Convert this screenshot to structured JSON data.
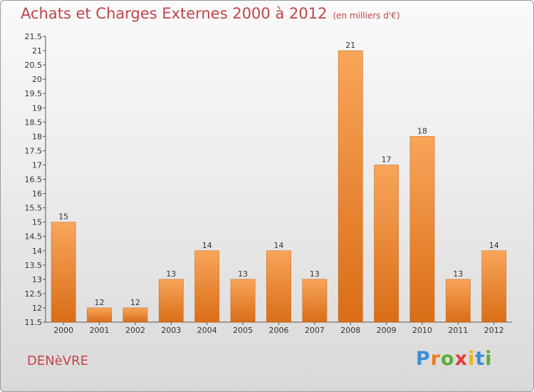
{
  "header": {
    "title": "Achats et Charges Externes 2000 à 2012",
    "subtitle": "(en milliers d'€)"
  },
  "footer": {
    "commune": "DENèVRE",
    "logo_text": "Proxiti"
  },
  "chart_data": {
    "type": "bar",
    "title": "Achats et Charges Externes 2000 à 2012",
    "subtitle": "(en milliers d'€)",
    "xlabel": "",
    "ylabel": "",
    "categories": [
      "2000",
      "2001",
      "2002",
      "2003",
      "2004",
      "2005",
      "2006",
      "2007",
      "2008",
      "2009",
      "2010",
      "2011",
      "2012"
    ],
    "values": [
      15,
      12,
      12,
      13,
      14,
      13,
      14,
      13,
      21,
      17,
      18,
      13,
      14
    ],
    "ylim": [
      11.5,
      21.5
    ],
    "yticks": [
      "11.5",
      "12",
      "12.5",
      "13",
      "13.5",
      "14",
      "14.5",
      "15",
      "15.5",
      "16",
      "16.5",
      "17",
      "17.5",
      "18",
      "18.5",
      "19",
      "19.5",
      "20",
      "20.5",
      "21",
      "21.5"
    ],
    "grid": false,
    "legend": "none",
    "bar_color": "#f0913a"
  }
}
